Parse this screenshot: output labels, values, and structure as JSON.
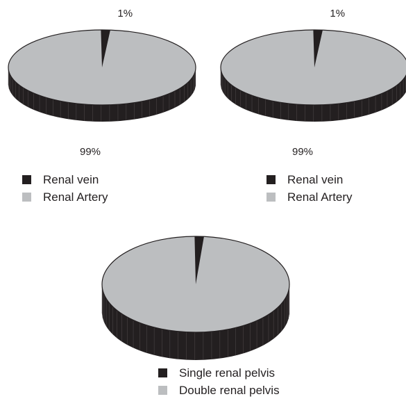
{
  "colors": {
    "dark": "#231f20",
    "light": "#bcbec0"
  },
  "chart_data": [
    {
      "type": "pie",
      "categories": [
        "Renal vein",
        "Renal Artery"
      ],
      "values": [
        1,
        99
      ],
      "value_labels": [
        "1%",
        "99%"
      ],
      "title": ""
    },
    {
      "type": "pie",
      "categories": [
        "Renal vein",
        "Renal Artery"
      ],
      "values": [
        1,
        99
      ],
      "value_labels": [
        "1%",
        "99%"
      ],
      "title": ""
    },
    {
      "type": "pie",
      "categories": [
        "Single renal pelvis",
        "Double renal pelvis"
      ],
      "values": [
        1,
        99
      ],
      "value_labels": [
        "",
        ""
      ],
      "title": ""
    }
  ]
}
